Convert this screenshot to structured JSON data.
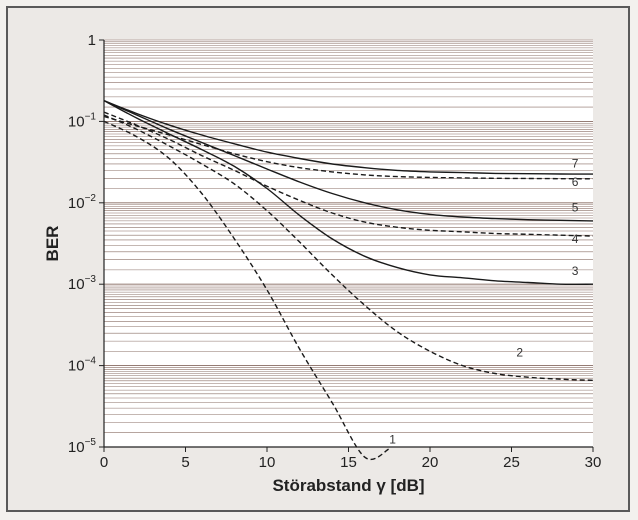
{
  "chart_data": {
    "type": "line",
    "xlabel": "Störabstand γ [dB]",
    "ylabel": "BER",
    "xlim": [
      0,
      30
    ],
    "ylim": [
      1e-05,
      1
    ],
    "yscale": "log",
    "grid": "horizontal, dense (log minor lines)",
    "x_ticks": [
      0,
      5,
      10,
      15,
      20,
      25,
      30
    ],
    "y_ticks": [
      {
        "value": 1,
        "base": "1",
        "exp": ""
      },
      {
        "value": 0.1,
        "base": "10",
        "exp": "−1"
      },
      {
        "value": 0.01,
        "base": "10",
        "exp": "−2"
      },
      {
        "value": 0.001,
        "base": "10",
        "exp": "−3"
      },
      {
        "value": 0.0001,
        "base": "10",
        "exp": "−4"
      },
      {
        "value": 1e-05,
        "base": "10",
        "exp": "−5"
      }
    ],
    "series": [
      {
        "name": "1",
        "style": "dashed",
        "x": [
          0,
          2,
          4,
          6,
          8,
          10,
          12,
          14,
          16,
          17.5
        ],
        "y": [
          0.1,
          0.065,
          0.035,
          0.013,
          0.0036,
          0.00085,
          0.00016,
          3.5e-05,
          7.5e-06,
          9.5e-06
        ]
      },
      {
        "name": "2",
        "style": "dashed",
        "x": [
          0,
          2,
          4,
          6,
          8,
          10,
          12,
          14,
          16,
          18,
          20,
          22,
          24,
          26,
          28,
          30
        ],
        "y": [
          0.12,
          0.08,
          0.05,
          0.03,
          0.017,
          0.008,
          0.0033,
          0.0013,
          0.00055,
          0.00026,
          0.00015,
          0.0001,
          8e-05,
          7.2e-05,
          6.8e-05,
          6.6e-05
        ]
      },
      {
        "name": "3",
        "style": "solid",
        "x": [
          0,
          2,
          4,
          6,
          8,
          10,
          12,
          14,
          16,
          18,
          20,
          22,
          24,
          26,
          28,
          30
        ],
        "y": [
          0.18,
          0.11,
          0.07,
          0.045,
          0.028,
          0.015,
          0.007,
          0.0036,
          0.0022,
          0.0016,
          0.0013,
          0.0012,
          0.0011,
          0.00105,
          0.001,
          0.001
        ]
      },
      {
        "name": "4",
        "style": "dashed",
        "x": [
          0,
          2,
          4,
          6,
          8,
          10,
          12,
          14,
          16,
          18,
          20,
          22,
          24,
          26,
          28,
          30
        ],
        "y": [
          0.13,
          0.09,
          0.06,
          0.038,
          0.025,
          0.016,
          0.0107,
          0.0075,
          0.0058,
          0.005,
          0.0046,
          0.0044,
          0.0042,
          0.0041,
          0.004,
          0.0039
        ]
      },
      {
        "name": "5",
        "style": "solid",
        "x": [
          0,
          2,
          4,
          6,
          8,
          10,
          12,
          14,
          16,
          18,
          20,
          22,
          24,
          26,
          28,
          30
        ],
        "y": [
          0.18,
          0.12,
          0.08,
          0.055,
          0.038,
          0.026,
          0.018,
          0.013,
          0.01,
          0.0082,
          0.0072,
          0.0067,
          0.0064,
          0.0062,
          0.0061,
          0.006
        ]
      },
      {
        "name": "6",
        "style": "dashed",
        "x": [
          0,
          2,
          4,
          6,
          8,
          10,
          12,
          14,
          16,
          18,
          20,
          22,
          24,
          26,
          28,
          30
        ],
        "y": [
          0.115,
          0.088,
          0.068,
          0.052,
          0.04,
          0.032,
          0.027,
          0.024,
          0.022,
          0.021,
          0.0205,
          0.0202,
          0.02,
          0.0199,
          0.0198,
          0.0197
        ]
      },
      {
        "name": "7",
        "style": "solid",
        "x": [
          0,
          2,
          4,
          6,
          8,
          10,
          12,
          14,
          16,
          18,
          20,
          22,
          24,
          26,
          28,
          30
        ],
        "y": [
          0.18,
          0.125,
          0.09,
          0.068,
          0.053,
          0.042,
          0.035,
          0.03,
          0.027,
          0.025,
          0.024,
          0.0235,
          0.023,
          0.0228,
          0.0226,
          0.0225
        ]
      }
    ],
    "curve_labels": [
      {
        "text": "1",
        "x": 17.5,
        "y": 1.1e-05
      },
      {
        "text": "2",
        "x": 25.3,
        "y": 0.00013
      },
      {
        "text": "3",
        "x": 28.7,
        "y": 0.0013
      },
      {
        "text": "4",
        "x": 28.7,
        "y": 0.0032
      },
      {
        "text": "5",
        "x": 28.7,
        "y": 0.0078
      },
      {
        "text": "6",
        "x": 28.7,
        "y": 0.016
      },
      {
        "text": "7",
        "x": 28.7,
        "y": 0.027
      }
    ]
  }
}
